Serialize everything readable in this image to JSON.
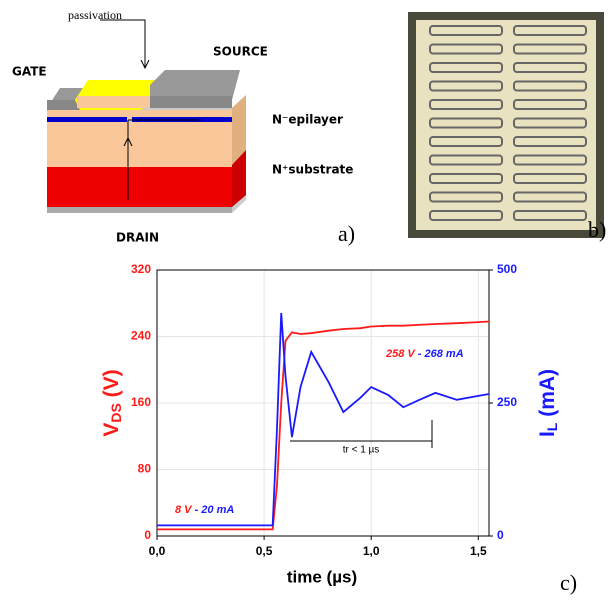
{
  "diagram": {
    "passivation": "passivation",
    "gate": "GATE",
    "source": "SOURCE",
    "epilayer": "N⁻epilayer",
    "substrate": "N⁺substrate",
    "drain": "DRAIN",
    "panel": "a)"
  },
  "photo": {
    "panel": "b)"
  },
  "chart_data": {
    "type": "line",
    "panel": "c)",
    "xlabel": "time (µs)",
    "ylabel": [
      "V",
      "DS",
      " (V)"
    ],
    "y2label": [
      "I",
      "L",
      " (mA)"
    ],
    "x": [
      0,
      0.2,
      0.4,
      0.54,
      0.56,
      0.58,
      0.6,
      0.63,
      0.67,
      0.72,
      0.8,
      0.87,
      0.95,
      1.0,
      1.08,
      1.15,
      1.22,
      1.3,
      1.4,
      1.48,
      1.55
    ],
    "series": [
      {
        "name": "VDS",
        "color": "#ff1a1a",
        "values": [
          8,
          8,
          8,
          8,
          60,
          160,
          235,
          245,
          243,
          244,
          247,
          249,
          250,
          252,
          253,
          253,
          254,
          255,
          256,
          257,
          258
        ]
      },
      {
        "name": "IL",
        "color": "#1a1aff",
        "axis": "y2",
        "values": [
          20,
          20,
          20,
          20,
          200,
          419,
          300,
          186,
          280,
          346,
          290,
          233,
          260,
          280,
          265,
          242,
          255,
          269,
          256,
          262,
          267
        ]
      }
    ],
    "xlim": [
      0,
      1.55
    ],
    "xticks": [
      {
        "value": 0,
        "label": "0,0"
      },
      {
        "value": 0.5,
        "label": "0,5"
      },
      {
        "value": 1,
        "label": "1,0"
      },
      {
        "value": 1.5,
        "label": "1,5"
      }
    ],
    "ylim": [
      0,
      320
    ],
    "yticks": [
      0,
      80,
      160,
      240,
      320
    ],
    "y2lim": [
      0,
      500
    ],
    "y2ticks": [
      0,
      250,
      500
    ],
    "grid": true,
    "annotations": [
      [
        "8 V",
        " - 20 mA"
      ],
      [
        "258 V",
        " - 268 mA"
      ],
      "tr < 1 µs"
    ]
  }
}
